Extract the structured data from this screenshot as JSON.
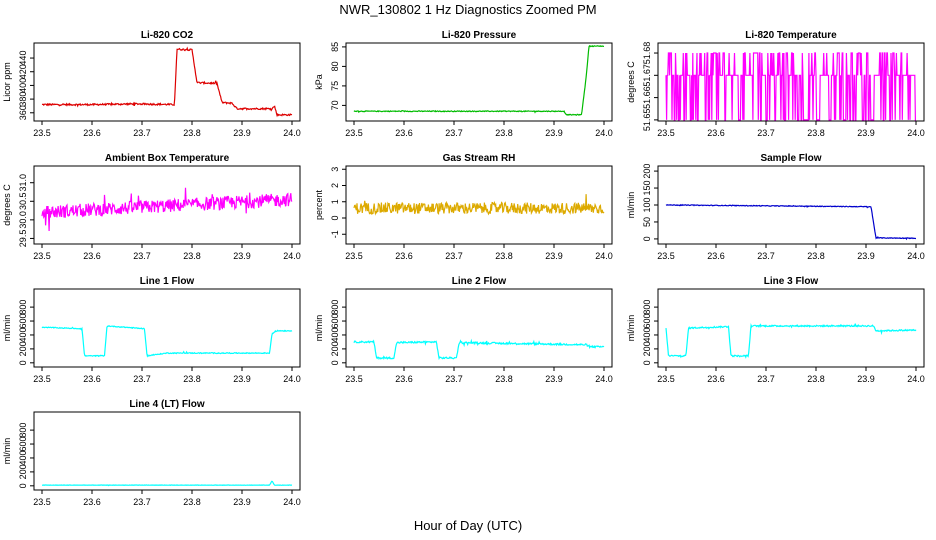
{
  "title": "NWR_130802  1 Hz Diagnostics Zoomed PM",
  "xlabel": "Hour of Day (UTC)",
  "x_ticks": [
    "23.5",
    "23.6",
    "23.7",
    "23.8",
    "23.9",
    "24.0"
  ],
  "chart_data": [
    {
      "type": "line",
      "title": "Li-820 CO2",
      "ylabel": "Licor ppm",
      "color": "#dd0000",
      "xlim": [
        23.5,
        24.0
      ],
      "ylim": [
        348,
        462
      ],
      "y_ticks": [
        "360",
        "380",
        "400",
        "420",
        "440"
      ],
      "x": [
        23.5,
        23.6,
        23.69,
        23.765,
        23.77,
        23.8,
        23.81,
        23.85,
        23.86,
        23.88,
        23.89,
        23.96,
        23.965,
        23.97,
        24.0
      ],
      "values": [
        372,
        372,
        373,
        372,
        453,
        452,
        404,
        403,
        375,
        374,
        366,
        366,
        370,
        357,
        357
      ],
      "noise": 1.2
    },
    {
      "type": "line",
      "title": "Li-820 Pressure",
      "ylabel": "kPa",
      "color": "#00bb00",
      "xlim": [
        23.5,
        24.0
      ],
      "ylim": [
        66,
        86
      ],
      "y_ticks": [
        "70",
        "75",
        "80",
        "85"
      ],
      "x": [
        23.5,
        23.92,
        23.925,
        23.955,
        23.965,
        23.97,
        24.0
      ],
      "values": [
        68.5,
        68.5,
        67.6,
        67.6,
        78,
        85.2,
        85.2
      ],
      "noise": 0.1
    },
    {
      "type": "line",
      "title": "Li-820 Temperature",
      "ylabel": "degrees C",
      "color": "#ff00ff",
      "xlim": [
        23.5,
        24.0
      ],
      "ylim": [
        51.6495,
        51.6845
      ],
      "y_ticks": [
        "51.65",
        "51.66",
        "51.67",
        "51.68"
      ],
      "x": [
        23.5,
        24.0
      ],
      "values": [
        51.67,
        51.67
      ],
      "noise": 0,
      "levels": [
        51.65,
        51.67,
        51.68
      ],
      "square_wave": true
    },
    {
      "type": "line",
      "title": "Ambient Box Temperature",
      "ylabel": "degrees C",
      "color": "#ff00ff",
      "xlim": [
        23.5,
        24.0
      ],
      "ylim": [
        29.35,
        31.45
      ],
      "y_ticks": [
        "29.5",
        "30.0",
        "30.5",
        "31.0"
      ],
      "x": [
        23.5,
        24.0
      ],
      "values": [
        30.2,
        30.55
      ],
      "noise": 0.18
    },
    {
      "type": "line",
      "title": "Gas Stream RH",
      "ylabel": "percent",
      "color": "#ddaa00",
      "xlim": [
        23.5,
        24.0
      ],
      "ylim": [
        -1.6,
        3.2
      ],
      "y_ticks": [
        "-1",
        "0",
        "1",
        "2",
        "3"
      ],
      "x": [
        23.5,
        24.0
      ],
      "values": [
        0.6,
        0.6
      ],
      "noise": 0.35
    },
    {
      "type": "line",
      "title": "Sample Flow",
      "ylabel": "ml/min",
      "color": "#0000cc",
      "xlim": [
        23.5,
        24.0
      ],
      "ylim": [
        -15,
        215
      ],
      "y_ticks": [
        "0",
        "50",
        "100",
        "150",
        "200"
      ],
      "x": [
        23.5,
        23.9,
        23.91,
        23.92,
        24.0
      ],
      "values": [
        100,
        95,
        95,
        3,
        2
      ],
      "noise": 1
    },
    {
      "type": "line",
      "title": "Line 1 Flow",
      "ylabel": "ml/min",
      "color": "#00ffff",
      "xlim": [
        23.5,
        24.0
      ],
      "ylim": [
        -60,
        1060
      ],
      "y_ticks": [
        "0",
        "200",
        "400",
        "600",
        "800"
      ],
      "x": [
        23.5,
        23.505,
        23.58,
        23.585,
        23.625,
        23.63,
        23.705,
        23.71,
        23.75,
        23.955,
        23.96,
        23.97,
        24.0
      ],
      "values": [
        510,
        510,
        490,
        100,
        100,
        530,
        490,
        100,
        140,
        140,
        420,
        460,
        460
      ],
      "noise": 6
    },
    {
      "type": "line",
      "title": "Line 2 Flow",
      "ylabel": "ml/min",
      "color": "#00ffff",
      "xlim": [
        23.5,
        24.0
      ],
      "ylim": [
        -60,
        1060
      ],
      "y_ticks": [
        "0",
        "200",
        "400",
        "600",
        "800"
      ],
      "x": [
        23.5,
        23.54,
        23.545,
        23.58,
        23.585,
        23.665,
        23.67,
        23.705,
        23.71,
        23.965,
        23.97,
        24.0
      ],
      "values": [
        300,
        300,
        70,
        70,
        290,
        300,
        70,
        70,
        290,
        260,
        230,
        230
      ],
      "noise": 12
    },
    {
      "type": "line",
      "title": "Line 3 Flow",
      "ylabel": "ml/min",
      "color": "#00ffff",
      "xlim": [
        23.5,
        24.0
      ],
      "ylim": [
        -60,
        1060
      ],
      "y_ticks": [
        "0",
        "200",
        "400",
        "600",
        "800"
      ],
      "x": [
        23.5,
        23.505,
        23.54,
        23.545,
        23.625,
        23.63,
        23.665,
        23.67,
        23.915,
        23.92,
        24.0
      ],
      "values": [
        500,
        100,
        100,
        500,
        520,
        100,
        100,
        530,
        530,
        460,
        470
      ],
      "noise": 10
    },
    {
      "type": "line",
      "title": "Line 4 (LT) Flow",
      "ylabel": "ml/min",
      "color": "#00ffff",
      "xlim": [
        23.5,
        24.0
      ],
      "ylim": [
        -60,
        1060
      ],
      "y_ticks": [
        "0",
        "200",
        "400",
        "600",
        "800"
      ],
      "x": [
        23.5,
        23.955,
        23.96,
        23.965,
        24.0
      ],
      "values": [
        10,
        10,
        70,
        10,
        10
      ],
      "noise": 2
    }
  ]
}
